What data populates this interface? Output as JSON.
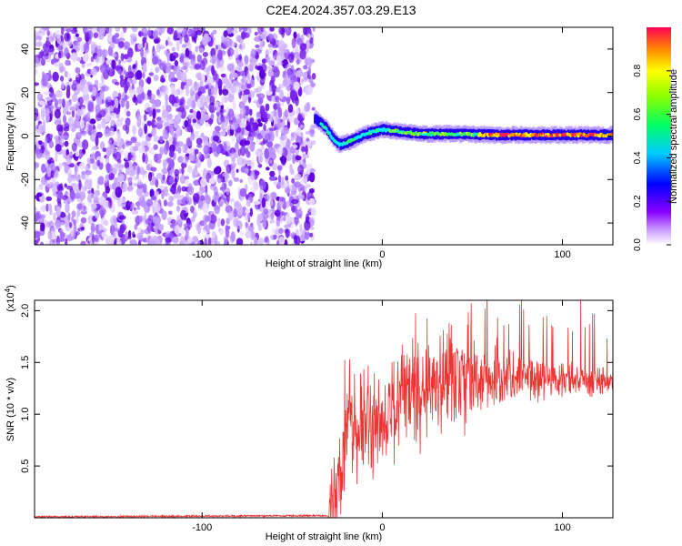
{
  "title": "C2E4.2024.357.03.29.E13",
  "chart_data": [
    {
      "type": "heatmap",
      "title": "C2E4.2024.357.03.29.E13",
      "xlabel": "Height of straight line (km)",
      "ylabel": "Frequency (Hz)",
      "xlim": [
        -193,
        128
      ],
      "ylim": [
        -50,
        50
      ],
      "xticks": [
        -100,
        0,
        100
      ],
      "xtick_labels": [
        "-100",
        "0",
        "100"
      ],
      "yticks": [
        -40,
        -20,
        0,
        20,
        40
      ],
      "ytick_labels": [
        "-40",
        "-20",
        "0",
        "20",
        "40"
      ],
      "noise_region_x": [
        -193,
        -38
      ],
      "signal_track": {
        "x": [
          -38,
          -33,
          -30,
          -27,
          -24,
          -20,
          -15,
          -10,
          -5,
          0,
          10,
          20,
          40,
          60,
          80,
          100,
          128
        ],
        "y": [
          8,
          5,
          2,
          -2,
          -4,
          -3,
          -1,
          1,
          2,
          3,
          2,
          1,
          1,
          0.5,
          0.5,
          0.5,
          0.5
        ]
      },
      "colorbar": {
        "label": "Normalized spectral amplitude",
        "range": [
          0,
          1
        ],
        "ticks": [
          0.0,
          0.2,
          0.4,
          0.6,
          0.8
        ],
        "tick_labels": [
          "0.0",
          "0.2",
          "0.4",
          "0.6",
          "0.8"
        ]
      },
      "grid": false
    },
    {
      "type": "line",
      "xlabel": "Height of straight line (km)",
      "ylabel": "SNR (10 * v/v)",
      "yscale_label": "(x10",
      "yscale_exponent": "4",
      "xlim": [
        -193,
        128
      ],
      "ylim": [
        0,
        2.1
      ],
      "xticks": [
        -100,
        0,
        100
      ],
      "xtick_labels": [
        "-100",
        "0",
        "100"
      ],
      "yticks": [
        0.5,
        1.0,
        1.5,
        2.0
      ],
      "ytick_labels": [
        "0.5",
        "1.0",
        "1.5",
        "2.0"
      ],
      "line_color": "#ee3333",
      "series": [
        {
          "x": [
            -193,
            -40,
            -30,
            -28,
            -25,
            -24,
            -22,
            -20,
            -18,
            -15,
            -12,
            -10,
            -8,
            -5,
            0,
            5,
            10,
            12,
            15,
            20,
            25,
            30,
            40,
            50,
            60,
            70,
            80,
            90,
            100,
            110,
            120,
            128
          ],
          "values": [
            0.01,
            0.02,
            0.02,
            0.1,
            0.3,
            0.55,
            0.4,
            0.9,
            1.1,
            0.7,
            0.9,
            1.0,
            0.95,
            0.8,
            0.9,
            1.05,
            1.1,
            1.2,
            1.15,
            1.2,
            1.25,
            1.3,
            1.32,
            1.33,
            1.35,
            1.36,
            1.35,
            1.34,
            1.33,
            1.32,
            1.33,
            1.32
          ]
        }
      ]
    }
  ]
}
